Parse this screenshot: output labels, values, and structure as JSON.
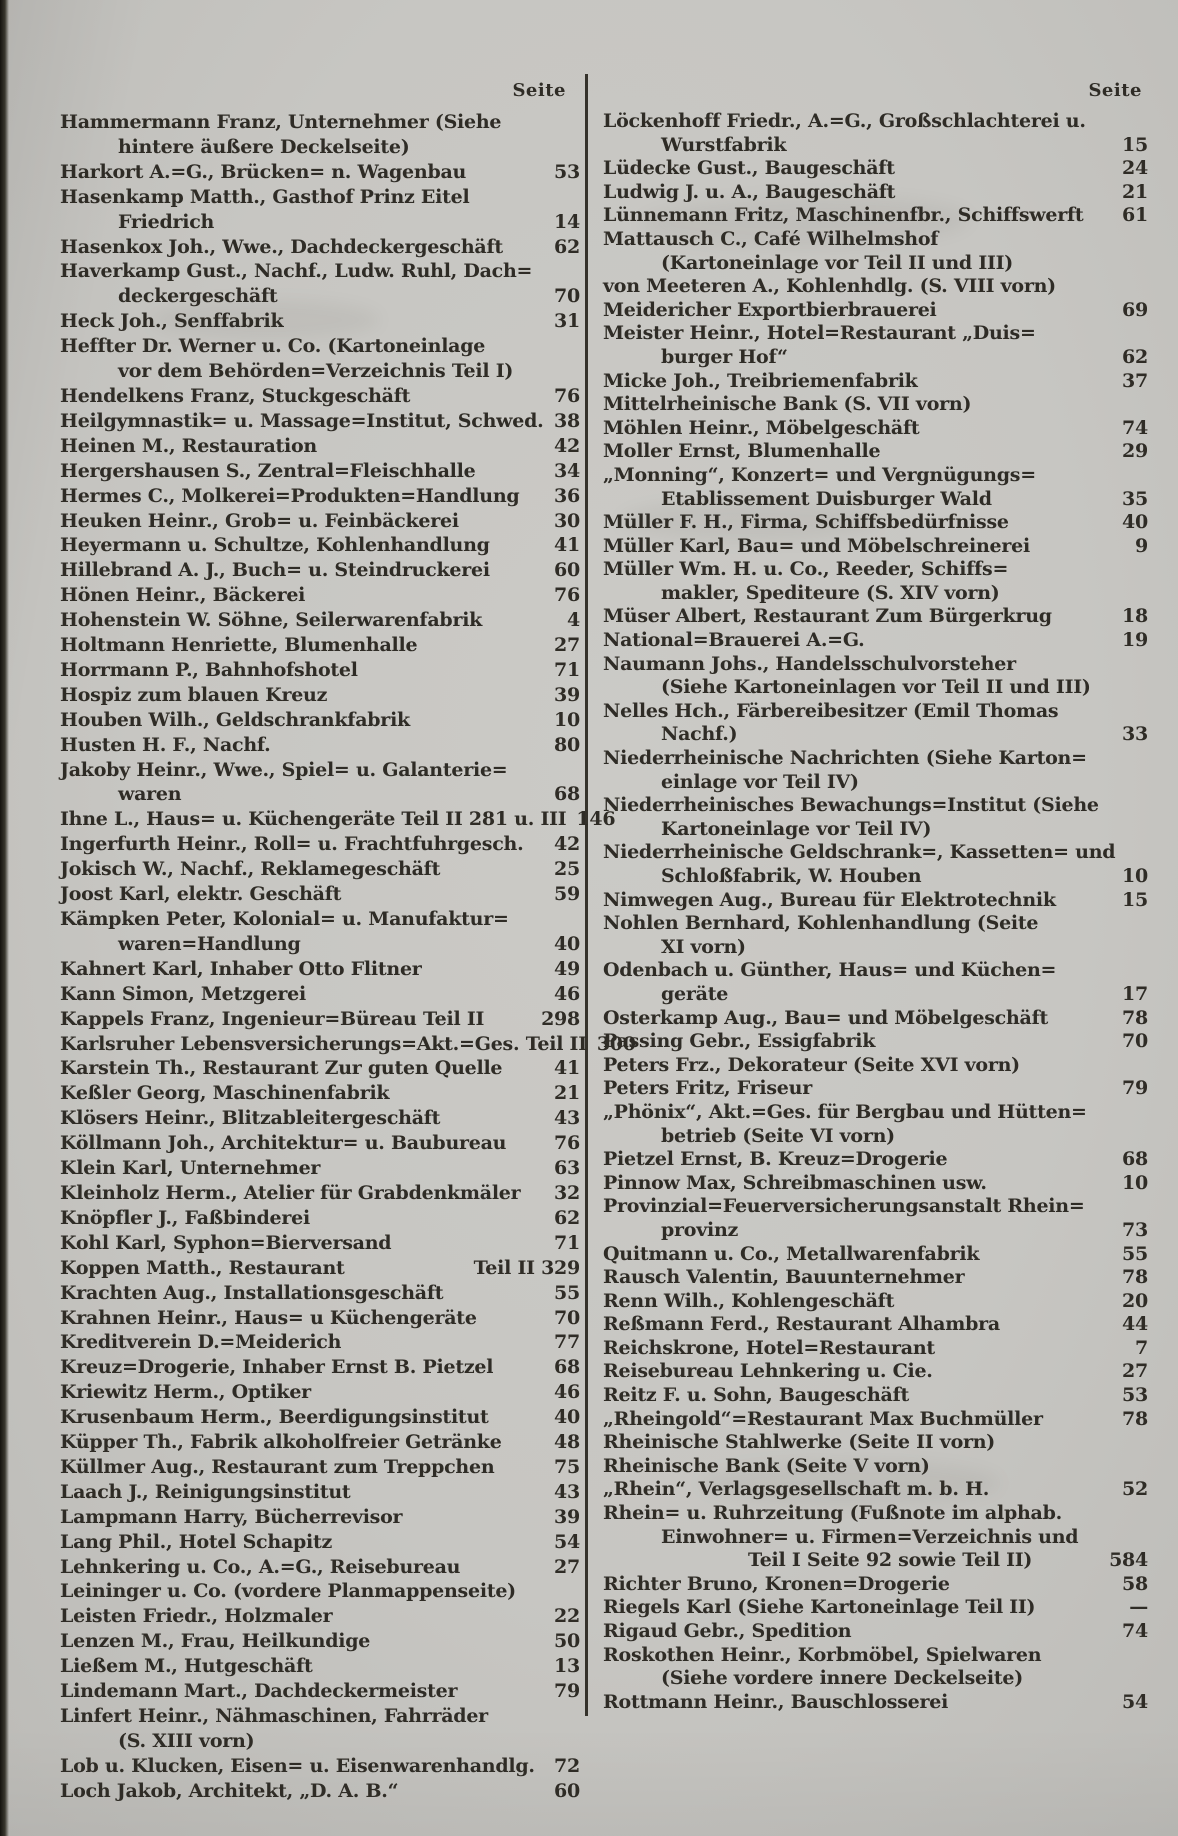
{
  "style": {
    "paper": "#c7c6c2",
    "ink": "#2f2c26",
    "divider": "#35322b"
  },
  "columns": {
    "left": {
      "header": "Seite",
      "lines": [
        {
          "t": "Hammermann Franz, Unternehmer (Siehe"
        },
        {
          "t": "hintere äußere Deckelseite)",
          "i": 1
        },
        {
          "t": "Harkort A.=G., Brücken= n. Wagenbau",
          "d": 1,
          "p": "53"
        },
        {
          "t": "Hasenkamp Matth., Gasthof Prinz Eitel"
        },
        {
          "t": "Friedrich",
          "i": 1,
          "d": 1,
          "p": "14"
        },
        {
          "t": "Hasenkox Joh., Wwe., Dachdeckergeschäft",
          "d": 1,
          "p": "62"
        },
        {
          "t": "Haverkamp Gust., Nachf., Ludw. Ruhl, Dach="
        },
        {
          "t": "deckergeschäft",
          "i": 1,
          "d": 1,
          "p": "70"
        },
        {
          "t": "Heck Joh., Senffabrik",
          "d": 1,
          "p": "31"
        },
        {
          "t": "Heffter Dr. Werner u. Co. (Kartoneinlage"
        },
        {
          "t": "vor dem Behörden=Verzeichnis Teil I)",
          "i": 1
        },
        {
          "t": "Hendelkens Franz, Stuckgeschäft",
          "d": 1,
          "p": "76"
        },
        {
          "t": "Heilgymnastik= u. Massage=Institut, Schwed.",
          "p": "38"
        },
        {
          "t": "Heinen M., Restauration",
          "d": 1,
          "p": "42"
        },
        {
          "t": "Hergershausen S., Zentral=Fleischhalle",
          "d": 1,
          "p": "34"
        },
        {
          "t": "Hermes C., Molkerei=Produkten=Handlung",
          "d": 1,
          "p": "36"
        },
        {
          "t": "Heuken Heinr., Grob= u. Feinbäckerei",
          "d": 1,
          "p": "30"
        },
        {
          "t": "Heyermann u. Schultze, Kohlenhandlung",
          "d": 1,
          "p": "41"
        },
        {
          "t": "Hillebrand A. J., Buch= u. Steindruckerei",
          "d": 1,
          "p": "60"
        },
        {
          "t": "Hönen Heinr., Bäckerei",
          "d": 1,
          "p": "76"
        },
        {
          "t": "Hohenstein W. Söhne, Seilerwarenfabrik",
          "d": 1,
          "p": "4"
        },
        {
          "t": "Holtmann Henriette, Blumenhalle",
          "d": 1,
          "p": "27"
        },
        {
          "t": "Horrmann P., Bahnhofshotel",
          "d": 1,
          "p": "71"
        },
        {
          "t": "Hospiz zum blauen Kreuz",
          "d": 1,
          "p": "39"
        },
        {
          "t": "Houben Wilh., Geldschrankfabrik",
          "d": 1,
          "p": "10"
        },
        {
          "t": "Husten H. F., Nachf.",
          "d": 1,
          "p": "80"
        },
        {
          "t": "Jakoby Heinr., Wwe., Spiel= u. Galanterie="
        },
        {
          "t": "waren",
          "i": 1,
          "d": 1,
          "p": "68"
        },
        {
          "t": "Ihne L., Haus= u. Küchengeräte Teil II 281 u. III",
          "p": "146"
        },
        {
          "t": "Ingerfurth Heinr., Roll= u. Frachtfuhrgesch.",
          "p": "42"
        },
        {
          "t": "Jokisch W., Nachf., Reklamegeschäft",
          "d": 1,
          "p": "25"
        },
        {
          "t": "Joost Karl, elektr. Geschäft",
          "d": 1,
          "p": "59"
        },
        {
          "t": "Kämpken Peter, Kolonial= u. Manufaktur="
        },
        {
          "t": "waren=Handlung",
          "i": 1,
          "d": 1,
          "p": "40"
        },
        {
          "t": "Kahnert Karl, Inhaber Otto Flitner",
          "d": 1,
          "p": "49"
        },
        {
          "t": "Kann Simon, Metzgerei",
          "d": 1,
          "p": "46"
        },
        {
          "t": "Kappels Franz, Ingenieur=Büreau Teil II",
          "p": "298"
        },
        {
          "t": "Karlsruher Lebensversicherungs=Akt.=Ges. Teil II",
          "p": "300"
        },
        {
          "t": "Karstein Th., Restaurant Zur guten Quelle",
          "p": "41"
        },
        {
          "t": "Keßler Georg, Maschinenfabrik",
          "d": 1,
          "p": "21"
        },
        {
          "t": "Klösers Heinr., Blitzableitergeschäft",
          "d": 1,
          "p": "43"
        },
        {
          "t": "Köllmann Joh., Architektur= u. Baubureau",
          "d": 1,
          "p": "76"
        },
        {
          "t": "Klein Karl, Unternehmer",
          "d": 1,
          "p": "63"
        },
        {
          "t": "Kleinholz Herm., Atelier für Grabdenkmäler",
          "d": 1,
          "p": "32"
        },
        {
          "t": "Knöpfler J., Faßbinderei",
          "d": 1,
          "p": "62"
        },
        {
          "t": "Kohl Karl, Syphon=Bierversand",
          "d": 1,
          "p": "71"
        },
        {
          "t": "Koppen Matth., Restaurant",
          "d": 1,
          "p": "Teil II 329"
        },
        {
          "t": "Krachten Aug., Installationsgeschäft",
          "d": 1,
          "p": "55"
        },
        {
          "t": "Krahnen Heinr., Haus= u Küchengeräte",
          "d": 1,
          "p": "70"
        },
        {
          "t": "Kreditverein D.=Meiderich",
          "d": 1,
          "p": "77"
        },
        {
          "t": "Kreuz=Drogerie, Inhaber Ernst B. Pietzel",
          "d": 1,
          "p": "68"
        },
        {
          "t": "Kriewitz Herm., Optiker",
          "d": 1,
          "p": "46"
        },
        {
          "t": "Krusenbaum Herm., Beerdigungsinstitut",
          "d": 1,
          "p": "40"
        },
        {
          "t": "Küpper Th., Fabrik alkoholfreier Getränke",
          "d": 1,
          "p": "48"
        },
        {
          "t": "Küllmer Aug., Restaurant zum Treppchen",
          "d": 1,
          "p": "75"
        },
        {
          "t": "Laach J., Reinigungsinstitut",
          "d": 1,
          "p": "43"
        },
        {
          "t": "Lampmann Harry, Bücherrevisor",
          "d": 1,
          "p": "39"
        },
        {
          "t": "Lang Phil., Hotel Schapitz",
          "d": 1,
          "p": "54"
        },
        {
          "t": "Lehnkering u. Co., A.=G., Reisebureau",
          "d": 1,
          "p": "27"
        },
        {
          "t": "Leininger u. Co. (vordere Planmappenseite)"
        },
        {
          "t": "Leisten Friedr., Holzmaler",
          "d": 1,
          "p": "22"
        },
        {
          "t": "Lenzen M., Frau, Heilkundige",
          "d": 1,
          "p": "50"
        },
        {
          "t": "Ließem M., Hutgeschäft",
          "d": 1,
          "p": "13"
        },
        {
          "t": "Lindemann Mart., Dachdeckermeister",
          "d": 1,
          "p": "79"
        },
        {
          "t": "Linfert Heinr., Nähmaschinen, Fahrräder"
        },
        {
          "t": "(S. XIII vorn)",
          "i": 1
        },
        {
          "t": "Lob u. Klucken, Eisen= u. Eisenwarenhandlg.",
          "p": "72"
        },
        {
          "t": "Loch Jakob, Architekt, „D. A. B.“",
          "d": 1,
          "p": "60"
        }
      ]
    },
    "right": {
      "header": "Seite",
      "lines": [
        {
          "t": "Löckenhoff Friedr., A.=G., Großschlachterei u."
        },
        {
          "t": "Wurstfabrik",
          "i": 1,
          "d": 1,
          "p": "15"
        },
        {
          "t": "Lüdecke Gust., Baugeschäft",
          "d": 1,
          "p": "24"
        },
        {
          "t": "Ludwig J. u. A., Baugeschäft",
          "d": 1,
          "p": "21"
        },
        {
          "t": "Lünnemann Fritz, Maschinenfbr., Schiffswerft",
          "p": "61"
        },
        {
          "t": "Mattausch C., Café Wilhelmshof"
        },
        {
          "t": "(Kartoneinlage vor Teil II und III)",
          "i": 1
        },
        {
          "t": "von Meeteren A., Kohlenhdlg. (S. VIII vorn)"
        },
        {
          "t": "Meidericher Exportbierbrauerei",
          "d": 1,
          "p": "69"
        },
        {
          "t": "Meister Heinr., Hotel=Restaurant „Duis="
        },
        {
          "t": "burger Hof“",
          "i": 1,
          "d": 1,
          "p": "62"
        },
        {
          "t": "Micke Joh., Treibriemenfabrik",
          "d": 1,
          "p": "37"
        },
        {
          "t": "Mittelrheinische Bank (S. VII vorn)"
        },
        {
          "t": "Möhlen Heinr., Möbelgeschäft",
          "d": 1,
          "p": "74"
        },
        {
          "t": "Moller Ernst, Blumenhalle",
          "d": 1,
          "p": "29"
        },
        {
          "t": "„Monning“, Konzert= und Vergnügungs="
        },
        {
          "t": "Etablissement Duisburger Wald",
          "i": 1,
          "d": 1,
          "p": "35"
        },
        {
          "t": "Müller F. H., Firma, Schiffsbedürfnisse",
          "d": 1,
          "p": "40"
        },
        {
          "t": "Müller Karl, Bau= und Möbelschreinerei",
          "d": 1,
          "p": "9"
        },
        {
          "t": "Müller Wm. H. u. Co., Reeder, Schiffs="
        },
        {
          "t": "makler, Spediteure (S. XIV vorn)",
          "i": 1
        },
        {
          "t": "Müser Albert, Restaurant Zum Bürgerkrug",
          "p": "18"
        },
        {
          "t": "National=Brauerei A.=G.",
          "d": 1,
          "p": "19"
        },
        {
          "t": "Naumann Johs., Handelsschulvorsteher"
        },
        {
          "t": "(Siehe Kartoneinlagen vor Teil II und III)",
          "i": 1
        },
        {
          "t": "Nelles Hch., Färbereibesitzer (Emil Thomas"
        },
        {
          "t": "Nachf.)",
          "i": 1,
          "d": 1,
          "p": "33"
        },
        {
          "t": "Niederrheinische Nachrichten (Siehe Karton="
        },
        {
          "t": "einlage vor Teil IV)",
          "i": 1
        },
        {
          "t": "Niederrheinisches Bewachungs=Institut (Siehe"
        },
        {
          "t": "Kartoneinlage vor Teil IV)",
          "i": 1
        },
        {
          "t": "Niederrheinische Geldschrank=, Kassetten= und"
        },
        {
          "t": "Schloßfabrik, W. Houben",
          "i": 1,
          "d": 1,
          "p": "10"
        },
        {
          "t": "Nimwegen Aug., Bureau für Elektrotechnik",
          "p": "15"
        },
        {
          "t": "Nohlen Bernhard, Kohlenhandlung (Seite"
        },
        {
          "t": "XI vorn)",
          "i": 1
        },
        {
          "t": "Odenbach u. Günther, Haus= und Küchen="
        },
        {
          "t": "geräte",
          "i": 1,
          "d": 1,
          "p": "17"
        },
        {
          "t": "Osterkamp Aug., Bau= und Möbelgeschäft",
          "p": "78"
        },
        {
          "t": "Passing Gebr., Essigfabrik",
          "d": 1,
          "p": "70"
        },
        {
          "t": "Peters Frz., Dekorateur (Seite XVI vorn)"
        },
        {
          "t": "Peters Fritz, Friseur",
          "d": 1,
          "p": "79"
        },
        {
          "t": "„Phönix“, Akt.=Ges. für Bergbau und Hütten="
        },
        {
          "t": "betrieb (Seite VI vorn)",
          "i": 1
        },
        {
          "t": "Pietzel Ernst, B. Kreuz=Drogerie",
          "d": 1,
          "p": "68"
        },
        {
          "t": "Pinnow Max, Schreibmaschinen usw.",
          "d": 1,
          "p": "10"
        },
        {
          "t": "Provinzial=Feuerversicherungsanstalt Rhein="
        },
        {
          "t": "provinz",
          "i": 1,
          "d": 1,
          "p": "73"
        },
        {
          "t": "Quitmann u. Co., Metallwarenfabrik",
          "d": 1,
          "p": "55"
        },
        {
          "t": "Rausch Valentin, Bauunternehmer",
          "d": 1,
          "p": "78"
        },
        {
          "t": "Renn Wilh., Kohlengeschäft",
          "d": 1,
          "p": "20"
        },
        {
          "t": "Reßmann Ferd., Restaurant Alhambra",
          "d": 1,
          "p": "44"
        },
        {
          "t": "Reichskrone, Hotel=Restaurant",
          "d": 1,
          "p": "7"
        },
        {
          "t": "Reisebureau Lehnkering u. Cie.",
          "d": 1,
          "p": "27"
        },
        {
          "t": "Reitz F. u. Sohn, Baugeschäft",
          "d": 1,
          "p": "53"
        },
        {
          "t": "„Rheingold“=Restaurant Max Buchmüller",
          "d": 1,
          "p": "78"
        },
        {
          "t": "Rheinische Stahlwerke (Seite II vorn)"
        },
        {
          "t": "Rheinische Bank (Seite V vorn)"
        },
        {
          "t": "„Rhein“, Verlagsgesellschaft m. b. H.",
          "d": 1,
          "p": "52"
        },
        {
          "t": "Rhein= u. Ruhrzeitung (Fußnote im alphab."
        },
        {
          "t": "Einwohner= u. Firmen=Verzeichnis und",
          "i": 1
        },
        {
          "t": "Teil I Seite 92 sowie Teil II)",
          "i": 2,
          "p": "584"
        },
        {
          "t": "Richter Bruno, Kronen=Drogerie",
          "d": 1,
          "p": "58"
        },
        {
          "t": "Riegels Karl (Siehe Kartoneinlage Teil II)",
          "p": "—"
        },
        {
          "t": "Rigaud Gebr., Spedition",
          "d": 1,
          "p": "74"
        },
        {
          "t": "Roskothen Heinr., Korbmöbel, Spielwaren"
        },
        {
          "t": "(Siehe vordere innere Deckelseite)",
          "i": 1
        },
        {
          "t": "Rottmann Heinr., Bauschlosserei",
          "d": 1,
          "p": "54"
        }
      ]
    }
  }
}
